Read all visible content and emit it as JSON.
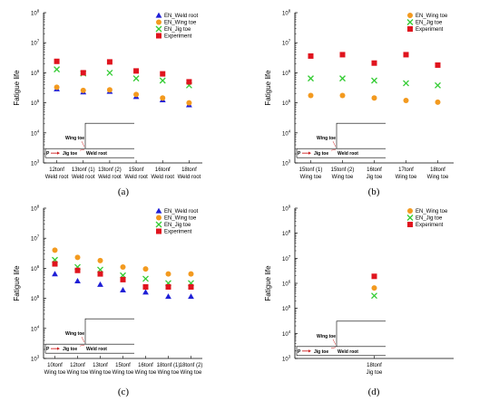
{
  "colors": {
    "blue": "#1f1fd6",
    "orange": "#f39a1f",
    "green": "#34cc34",
    "red": "#e0141e",
    "axis": "#000000",
    "inset_arrow": "#cc2020"
  },
  "inset": {
    "wing_toe": "Wing toe",
    "jig_toe": "Jig toe",
    "weld_root": "Weld root",
    "p": "P"
  },
  "chart_data": [
    {
      "type": "scatter",
      "caption": "(a)",
      "ylabel": "Fatigue life",
      "yscale": "log",
      "ylim": [
        1000,
        100000000
      ],
      "yticks": [
        "10^3",
        "10^4",
        "10^5",
        "10^6",
        "10^7",
        "10^8"
      ],
      "legend_position": "top-right",
      "categories": [
        [
          "12tonf",
          "Weld root"
        ],
        [
          "13tonf (1)",
          "Weld root"
        ],
        [
          "13tonf (2)",
          "Weld root"
        ],
        [
          "15tonf",
          "Weld root"
        ],
        [
          "16tonf",
          "Weld root"
        ],
        [
          "18tonf",
          "Weld root"
        ]
      ],
      "series": [
        {
          "name": "EN_Weld root",
          "marker": "triangle",
          "color": "blue",
          "values": [
            290000,
            230000,
            240000,
            160000,
            125000,
            85000
          ]
        },
        {
          "name": "EN_Wing toe",
          "marker": "circle",
          "color": "orange",
          "values": [
            330000,
            260000,
            270000,
            190000,
            145000,
            100000
          ]
        },
        {
          "name": "EN_Jig toe",
          "marker": "cross",
          "color": "green",
          "values": [
            1300000,
            950000,
            1000000,
            650000,
            550000,
            380000
          ]
        },
        {
          "name": "Experiment",
          "marker": "square",
          "color": "red",
          "values": [
            2400000,
            1000000,
            2300000,
            1150000,
            920000,
            500000
          ]
        }
      ]
    },
    {
      "type": "scatter",
      "caption": "(b)",
      "ylabel": "Fatigue life",
      "yscale": "log",
      "ylim": [
        1000,
        100000000
      ],
      "yticks": [
        "10^3",
        "10^4",
        "10^5",
        "10^6",
        "10^7",
        "10^8"
      ],
      "legend_position": "top-right",
      "categories": [
        [
          "15tonf (1)",
          "Wing toe"
        ],
        [
          "15tonf (2)",
          "Wing toe"
        ],
        [
          "16tonf",
          "Jig toe"
        ],
        [
          "17tonf",
          "Wing toe"
        ],
        [
          "18tonf",
          "Wing toe"
        ]
      ],
      "series": [
        {
          "name": "EN_Wing toe",
          "marker": "circle",
          "color": "orange",
          "values": [
            175000,
            175000,
            145000,
            120000,
            105000
          ]
        },
        {
          "name": "EN_Jig toe",
          "marker": "cross",
          "color": "green",
          "values": [
            650000,
            650000,
            550000,
            450000,
            380000
          ]
        },
        {
          "name": "Experiment",
          "marker": "square",
          "color": "red",
          "values": [
            3600000,
            4000000,
            2100000,
            4000000,
            1800000
          ]
        }
      ]
    },
    {
      "type": "scatter",
      "caption": "(c)",
      "ylabel": "Fatigue life",
      "yscale": "log",
      "ylim": [
        1000,
        100000000
      ],
      "yticks": [
        "10^3",
        "10^4",
        "10^5",
        "10^6",
        "10^7",
        "10^8"
      ],
      "legend_position": "top-right",
      "categories": [
        [
          "10tonf",
          "Wing toe"
        ],
        [
          "12tonf",
          "Wing toe"
        ],
        [
          "13tonf",
          "Wing toe"
        ],
        [
          "15tonf",
          "Wing toe"
        ],
        [
          "16tonf",
          "Wing toe"
        ],
        [
          "18tonf (1)",
          "Wing toe"
        ],
        [
          "18tonf (2)",
          "Wing toe"
        ]
      ],
      "series": [
        {
          "name": "EN_Weld root",
          "marker": "triangle",
          "color": "blue",
          "values": [
            650000,
            380000,
            290000,
            190000,
            160000,
            115000,
            115000
          ]
        },
        {
          "name": "EN_Wing toe",
          "marker": "circle",
          "color": "orange",
          "values": [
            4000000,
            2300000,
            1800000,
            1100000,
            950000,
            650000,
            650000
          ]
        },
        {
          "name": "EN_Jig toe",
          "marker": "cross",
          "color": "green",
          "values": [
            1900000,
            1100000,
            900000,
            580000,
            450000,
            320000,
            320000
          ]
        },
        {
          "name": "Experiment",
          "marker": "square",
          "color": "red",
          "values": [
            1400000,
            850000,
            650000,
            420000,
            240000,
            240000,
            240000
          ]
        }
      ]
    },
    {
      "type": "scatter",
      "caption": "(d)",
      "ylabel": "Fatigue life",
      "yscale": "log",
      "ylim": [
        1000,
        1000000000
      ],
      "yticks": [
        "10^3",
        "10^4",
        "10^5",
        "10^6",
        "10^7",
        "10^8",
        "10^9"
      ],
      "legend_position": "top-right",
      "categories": [
        [
          "18tonf",
          "Jig toe"
        ]
      ],
      "series": [
        {
          "name": "EN_Wing toe",
          "marker": "circle",
          "color": "orange",
          "values": [
            650000
          ]
        },
        {
          "name": "EN_Jig toe",
          "marker": "cross",
          "color": "green",
          "values": [
            320000
          ]
        },
        {
          "name": "Experiment",
          "marker": "square",
          "color": "red",
          "values": [
            1900000
          ]
        }
      ]
    }
  ]
}
